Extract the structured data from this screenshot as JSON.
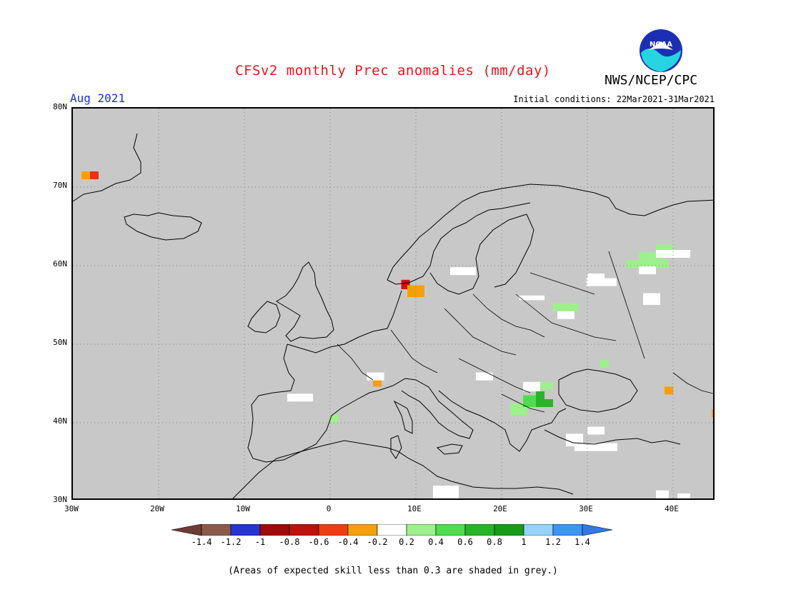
{
  "header": {
    "title": "CFSv2 monthly Prec anomalies (mm/day)",
    "agency": "NWS/NCEP/CPC",
    "logo_text": "NOAA",
    "month": "Aug 2021",
    "initial_conditions": "Initial conditions: 22Mar2021-31Mar2021"
  },
  "map": {
    "lat_labels": [
      "80N",
      "70N",
      "60N",
      "50N",
      "40N",
      "30N"
    ],
    "lon_labels": [
      "30W",
      "20W",
      "10W",
      "0",
      "10E",
      "20E",
      "30E",
      "40E"
    ],
    "background_color": "#c8c8c8",
    "anomaly_cells": [
      {
        "lon": -29.0,
        "lat": 71.0,
        "w": 1.0,
        "h": 1.0,
        "color": "#f5a00a"
      },
      {
        "lon": -28.0,
        "lat": 71.0,
        "w": 1.0,
        "h": 1.0,
        "color": "#e8301a"
      },
      {
        "lon": 8.3,
        "lat": 57.0,
        "w": 1.0,
        "h": 1.2,
        "color": "#d0120f"
      },
      {
        "lon": 9.0,
        "lat": 56.0,
        "w": 2.0,
        "h": 1.5,
        "color": "#f5a00a"
      },
      {
        "lon": 5.0,
        "lat": 44.6,
        "w": 1.0,
        "h": 1.0,
        "color": "#f5a00a"
      },
      {
        "lon": 39.0,
        "lat": 43.6,
        "w": 1.0,
        "h": 1.0,
        "color": "#f5a00a"
      },
      {
        "lon": 44.5,
        "lat": 40.7,
        "w": 0.5,
        "h": 1.0,
        "color": "#f5a00a"
      },
      {
        "lon": 34.5,
        "lat": 59.7,
        "w": 5.0,
        "h": 1.0,
        "color": "#9ef08c"
      },
      {
        "lon": 36.0,
        "lat": 60.7,
        "w": 3.0,
        "h": 1.0,
        "color": "#9ef08c"
      },
      {
        "lon": 38.0,
        "lat": 61.7,
        "w": 2.0,
        "h": 1.0,
        "color": "#9ef08c"
      },
      {
        "lon": 26.0,
        "lat": 54.2,
        "w": 3.0,
        "h": 1.0,
        "color": "#9ef08c"
      },
      {
        "lon": 31.5,
        "lat": 47.0,
        "w": 1.0,
        "h": 1.0,
        "color": "#9ef08c"
      },
      {
        "lon": 24.0,
        "lat": 44.2,
        "w": 2.0,
        "h": 1.0,
        "color": "#9ef08c"
      },
      {
        "lon": 21.0,
        "lat": 41.0,
        "w": 2.0,
        "h": 1.5,
        "color": "#9ef08c"
      },
      {
        "lon": 22.5,
        "lat": 42.0,
        "w": 1.5,
        "h": 1.5,
        "color": "#50dc50"
      },
      {
        "lon": 24.0,
        "lat": 42.0,
        "w": 1.0,
        "h": 2.0,
        "color": "#28b428"
      },
      {
        "lon": 25.0,
        "lat": 42.0,
        "w": 1.0,
        "h": 1.0,
        "color": "#28b428"
      },
      {
        "lon": 0.0,
        "lat": 40.0,
        "w": 1.0,
        "h": 1.0,
        "color": "#9ef08c"
      },
      {
        "lon": 38.0,
        "lat": 61.0,
        "w": 4.0,
        "h": 1.0,
        "color": "#ffffff"
      },
      {
        "lon": 36.0,
        "lat": 58.9,
        "w": 2.0,
        "h": 1.0,
        "color": "#ffffff"
      },
      {
        "lon": 29.9,
        "lat": 57.4,
        "w": 3.5,
        "h": 1.0,
        "color": "#ffffff"
      },
      {
        "lon": 30.0,
        "lat": 58.2,
        "w": 2.0,
        "h": 0.8,
        "color": "#ffffff"
      },
      {
        "lon": 36.5,
        "lat": 55.0,
        "w": 2.0,
        "h": 1.5,
        "color": "#ffffff"
      },
      {
        "lon": 14.0,
        "lat": 58.8,
        "w": 3.0,
        "h": 1.0,
        "color": "#ffffff"
      },
      {
        "lon": 22.0,
        "lat": 55.6,
        "w": 3.0,
        "h": 0.6,
        "color": "#ffffff"
      },
      {
        "lon": 26.5,
        "lat": 53.2,
        "w": 2.0,
        "h": 1.0,
        "color": "#ffffff"
      },
      {
        "lon": 4.3,
        "lat": 45.4,
        "w": 2.0,
        "h": 1.0,
        "color": "#ffffff"
      },
      {
        "lon": -5.0,
        "lat": 42.7,
        "w": 3.0,
        "h": 1.0,
        "color": "#ffffff"
      },
      {
        "lon": 17.0,
        "lat": 45.4,
        "w": 2.0,
        "h": 1.0,
        "color": "#ffffff"
      },
      {
        "lon": 22.5,
        "lat": 44.0,
        "w": 2.0,
        "h": 1.2,
        "color": "#ffffff"
      },
      {
        "lon": 30.0,
        "lat": 38.5,
        "w": 2.0,
        "h": 1.0,
        "color": "#ffffff"
      },
      {
        "lon": 27.5,
        "lat": 37.0,
        "w": 2.0,
        "h": 1.6,
        "color": "#ffffff"
      },
      {
        "lon": 28.5,
        "lat": 36.4,
        "w": 5.0,
        "h": 1.0,
        "color": "#ffffff"
      },
      {
        "lon": 12.0,
        "lat": 30.2,
        "w": 3.0,
        "h": 1.8,
        "color": "#ffffff"
      },
      {
        "lon": 38.0,
        "lat": 30.2,
        "w": 1.5,
        "h": 1.2,
        "color": "#ffffff"
      },
      {
        "lon": 40.5,
        "lat": 30.0,
        "w": 1.5,
        "h": 1.0,
        "color": "#ffffff"
      }
    ]
  },
  "colorbar": {
    "colors": [
      "#8c5a4b",
      "#2834d2",
      "#a00a0a",
      "#c00f0f",
      "#f03c14",
      "#f5a00a",
      "#ffffff",
      "#9ef08c",
      "#50dc50",
      "#28b428",
      "#189c18",
      "#96d2fa",
      "#3c96f0"
    ],
    "left_arrow_color": "#6e3c32",
    "right_arrow_color": "#3278e6",
    "labels": [
      "-1.4",
      "-1.2",
      "-1",
      "-0.8",
      "-0.6",
      "-0.4",
      "-0.2",
      "0.2",
      "0.4",
      "0.6",
      "0.8",
      "1",
      "1.2",
      "1.4"
    ]
  },
  "footnote": "(Areas of expected skill less than 0.3 are shaded in grey.)"
}
